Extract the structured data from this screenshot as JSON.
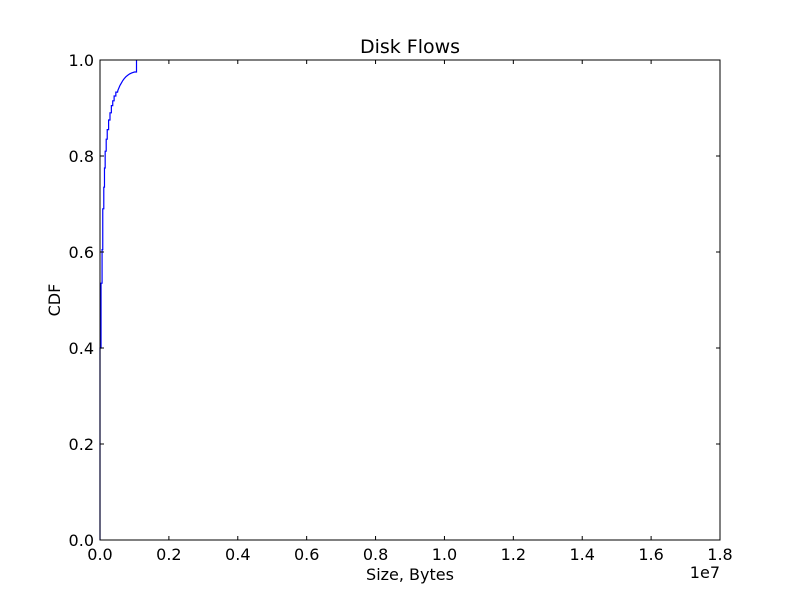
{
  "chart_data": {
    "type": "line",
    "title": "Disk Flows",
    "xlabel": "Size, Bytes",
    "ylabel": "CDF",
    "x_offset_label": "1e7",
    "xlim": [
      0,
      1.8
    ],
    "ylim": [
      0.0,
      1.0
    ],
    "x_ticks": [
      0.0,
      0.2,
      0.4,
      0.6,
      0.8,
      1.0,
      1.2,
      1.4,
      1.6,
      1.8
    ],
    "x_tick_labels": [
      "0.0",
      "0.2",
      "0.4",
      "0.6",
      "0.8",
      "1.0",
      "1.2",
      "1.4",
      "1.6",
      "1.8"
    ],
    "y_ticks": [
      0.0,
      0.2,
      0.4,
      0.6,
      0.8,
      1.0
    ],
    "y_tick_labels": [
      "0.0",
      "0.2",
      "0.4",
      "0.6",
      "0.8",
      "1.0"
    ],
    "grid": false,
    "legend": "none",
    "line_color": "#0000ff",
    "series": [
      {
        "x": [
          0.0,
          0.0,
          0.003,
          0.003,
          0.006,
          0.006,
          0.008,
          0.008,
          0.011,
          0.011,
          0.013,
          0.013,
          0.015,
          0.015,
          0.018,
          0.018,
          0.021,
          0.021,
          0.025,
          0.025,
          0.029,
          0.029,
          0.033,
          0.033,
          0.037,
          0.037,
          0.041,
          0.041,
          0.046,
          0.046,
          0.051,
          0.052,
          0.055,
          0.058,
          0.062,
          0.066,
          0.07,
          0.075,
          0.08,
          0.086,
          0.092,
          0.1,
          0.106,
          0.106,
          0.106
        ],
        "y": [
          0.0,
          0.4,
          0.4,
          0.535,
          0.535,
          0.605,
          0.605,
          0.69,
          0.69,
          0.735,
          0.735,
          0.775,
          0.775,
          0.81,
          0.81,
          0.835,
          0.835,
          0.855,
          0.855,
          0.875,
          0.875,
          0.89,
          0.89,
          0.905,
          0.905,
          0.915,
          0.915,
          0.925,
          0.925,
          0.933,
          0.933,
          0.937,
          0.942,
          0.947,
          0.952,
          0.957,
          0.961,
          0.965,
          0.968,
          0.971,
          0.973,
          0.975,
          0.975,
          0.985,
          1.0
        ]
      }
    ]
  }
}
